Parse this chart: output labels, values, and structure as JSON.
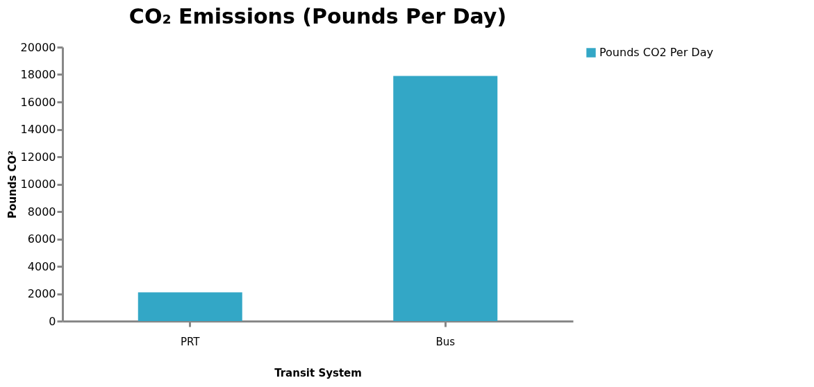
{
  "chart_data": {
    "type": "bar",
    "title": "CO₂ Emissions (Pounds Per Day)",
    "xlabel": "Transit System",
    "ylabel": "Pounds CO²",
    "categories": [
      "PRT",
      "Bus"
    ],
    "series": [
      {
        "name": "Pounds CO2 Per Day",
        "color": "#33a7c6",
        "values": [
          2100,
          17900
        ]
      }
    ],
    "ylim": [
      0,
      20000
    ],
    "yticks": [
      0,
      2000,
      4000,
      6000,
      8000,
      10000,
      12000,
      14000,
      16000,
      18000,
      20000
    ],
    "grid": false,
    "legend": "right"
  }
}
